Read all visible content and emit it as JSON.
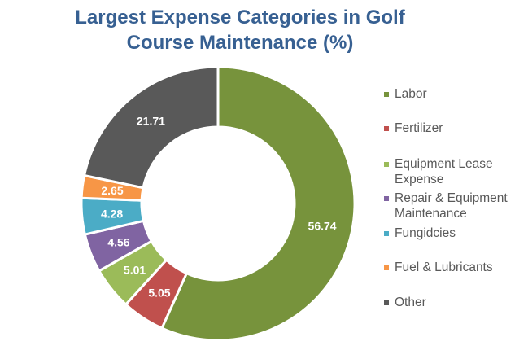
{
  "chart_data": {
    "type": "pie",
    "variant": "donut",
    "title": "Largest Expense Categories in Golf Course Maintenance (%)",
    "title_lines": [
      "Largest Expense Categories in Golf",
      "Course Maintenance (%)"
    ],
    "categories": [
      "Labor",
      "Fertilizer",
      "Equipment Lease Expense",
      "Repair & Equipment Maintenance",
      "Fungidcies",
      "Fuel & Lubricants",
      "Other"
    ],
    "legend_lines": [
      [
        "Labor"
      ],
      [
        "Fertilizer"
      ],
      [
        "Equipment Lease",
        "Expense"
      ],
      [
        "Repair & Equipment",
        "Maintenance"
      ],
      [
        "Fungidcies"
      ],
      [
        "Fuel & Lubricants"
      ],
      [
        "Other"
      ]
    ],
    "values": [
      56.74,
      5.05,
      5.01,
      4.56,
      4.28,
      2.65,
      21.71
    ],
    "data_labels": [
      "56.74",
      "5.05",
      "5.01",
      "4.56",
      "4.28",
      "2.65",
      "21.71"
    ],
    "colors": [
      "#77933C",
      "#C0504D",
      "#9BBB59",
      "#8064A2",
      "#4BACC6",
      "#F79646",
      "#595959"
    ],
    "legend_position": "right"
  }
}
